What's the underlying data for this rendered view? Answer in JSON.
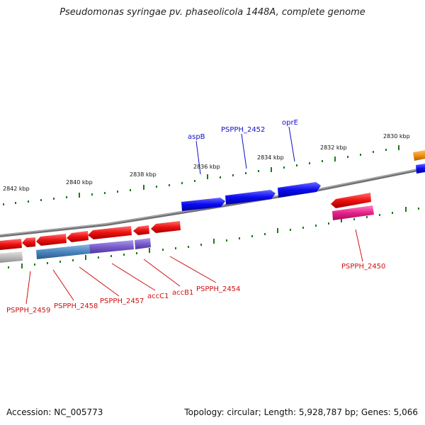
{
  "title": "Pseudomonas syringae pv. phaseolicola 1448A, complete genome",
  "accession_text": "Accession: NC_005773",
  "topology_text": "Topology: circular; Length: 5,928,787 bp; Genes: 5,066",
  "axis_labels": [
    "2842 kbp",
    "2840 kbp",
    "2838 kbp",
    "2836 kbp",
    "2834 kbp",
    "2832 kbp",
    "2830 kbp"
  ],
  "top_strand_labels": [
    "aspB",
    "PSPPH_2452",
    "oprE"
  ],
  "bottom_strand_labels": [
    "PSPPH_2459",
    "PSPPH_2458",
    "PSPPH_2457",
    "accC1",
    "accB1",
    "PSPPH_2454",
    "PSPPH_2450"
  ],
  "colors": {
    "forward_gene": "#0a0af0",
    "reverse_gene": "#ee1010",
    "backbone": "#808080",
    "tick": "#1a7a1a",
    "label_forward": "#1010c8",
    "label_reverse": "#d01010",
    "cds_blue_track": "#4a86c0",
    "cds_purple_track": "#7a5ccc",
    "magenta_track": "#e8208a",
    "orange_gene": "#f09010",
    "grey_track": "#bbbbbb"
  }
}
